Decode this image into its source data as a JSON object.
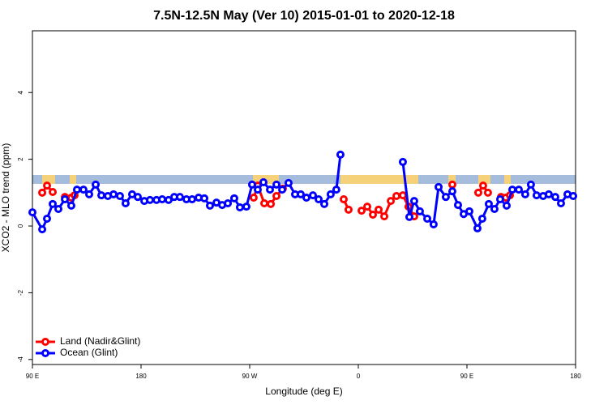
{
  "chart_data": {
    "type": "line",
    "title": "7.5N-12.5N May (Ver 10)   2015-01-01 to 2020-12-18",
    "x_label": "Longitude (deg E)",
    "y_label": "XCO2 - MLO trend (ppm)",
    "xlim": [
      90,
      540
    ],
    "ylim": [
      -4.15,
      5.85
    ],
    "xticks": [
      {
        "value": 90,
        "label": "90 E"
      },
      180,
      {
        "value": 270,
        "label": "90 W"
      },
      {
        "value": 360,
        "label": "0"
      },
      {
        "value": 450,
        "label": "90 E"
      },
      {
        "value": 540,
        "label": "180"
      }
    ],
    "yticks": [
      -4,
      -2,
      0,
      2,
      4
    ],
    "legend": "bottom-left",
    "series": [
      {
        "name": "Land (Nadir&Glint)",
        "color": "#ff0000",
        "x": [
          98.1,
          102.1,
          106.8,
          112,
          116.9,
          122.2,
          124.9,
          200,
          273.3,
          276.7,
          282.1,
          287.5,
          292.2,
          297.5,
          320,
          347.9,
          351.9,
          355,
          362.7,
          367.4,
          372.1,
          376.8,
          381.5,
          386.9,
          391.6,
          396.9,
          401.6,
          406.3,
          420,
          437.9,
          445,
          459.4,
          463.4,
          467.4,
          470,
          478.2,
          482.2,
          485.6
        ],
        "values": [
          1.0,
          1.21,
          1.02,
          null,
          0.87,
          0.85,
          0.92,
          null,
          0.85,
          1.21,
          0.68,
          0.66,
          0.9,
          1.12,
          null,
          0.8,
          0.49,
          null,
          0.46,
          0.58,
          0.34,
          0.49,
          0.29,
          0.75,
          0.9,
          0.92,
          0.58,
          0.29,
          null,
          1.24,
          null,
          1.0,
          1.21,
          1.0,
          null,
          0.87,
          0.85,
          0.92
        ]
      },
      {
        "name": "Ocean (Glint)",
        "color": "#0000ff",
        "x": [
          90,
          98.1,
          102.1,
          106.8,
          111.5,
          116.9,
          122.2,
          126.9,
          132.3,
          137.0,
          142.4,
          147.1,
          152.5,
          157.2,
          162.5,
          167.2,
          172.6,
          177.3,
          182.7,
          187.4,
          192.8,
          197.5,
          202.8,
          207.5,
          212.2,
          217.6,
          222.3,
          227.7,
          232.4,
          237.1,
          242.5,
          247.2,
          251.9,
          257.2,
          261.9,
          267.3,
          272.0,
          276.7,
          281.4,
          286.8,
          292.2,
          296.9,
          302.2,
          307.6,
          312.3,
          317.0,
          322.4,
          327.1,
          331.8,
          337.1,
          341.8,
          345.2,
          370,
          396.9,
          402.3,
          406.3,
          411.0,
          417.1,
          422.4,
          426.5,
          432.5,
          437.9,
          442.6,
          447.3,
          452.0,
          458.7,
          462.7,
          468.1,
          472.8,
          477.5,
          482.9,
          487.6,
          493.0,
          498.3,
          503.0,
          507.7,
          513.1,
          517.8,
          523.2,
          527.9,
          533.3,
          538.0
        ],
        "values": [
          0.41,
          -0.1,
          0.22,
          0.66,
          0.51,
          0.8,
          0.61,
          1.09,
          1.09,
          0.95,
          1.24,
          0.92,
          0.9,
          0.95,
          0.9,
          0.68,
          0.95,
          0.87,
          0.75,
          0.78,
          0.78,
          0.8,
          0.78,
          0.87,
          0.87,
          0.8,
          0.8,
          0.85,
          0.83,
          0.61,
          0.7,
          0.63,
          0.68,
          0.83,
          0.56,
          0.58,
          1.24,
          1.09,
          1.31,
          1.09,
          1.24,
          1.09,
          1.29,
          0.95,
          0.95,
          0.85,
          0.92,
          0.8,
          0.66,
          0.95,
          1.09,
          2.14,
          null,
          1.92,
          0.27,
          0.75,
          0.44,
          0.22,
          0.05,
          1.17,
          0.87,
          1.04,
          0.63,
          0.36,
          0.44,
          -0.07,
          0.22,
          0.66,
          0.51,
          0.8,
          0.61,
          1.09,
          1.09,
          0.95,
          1.24,
          0.92,
          0.9,
          0.95,
          0.87,
          0.68,
          0.95,
          0.9
        ]
      }
    ]
  }
}
